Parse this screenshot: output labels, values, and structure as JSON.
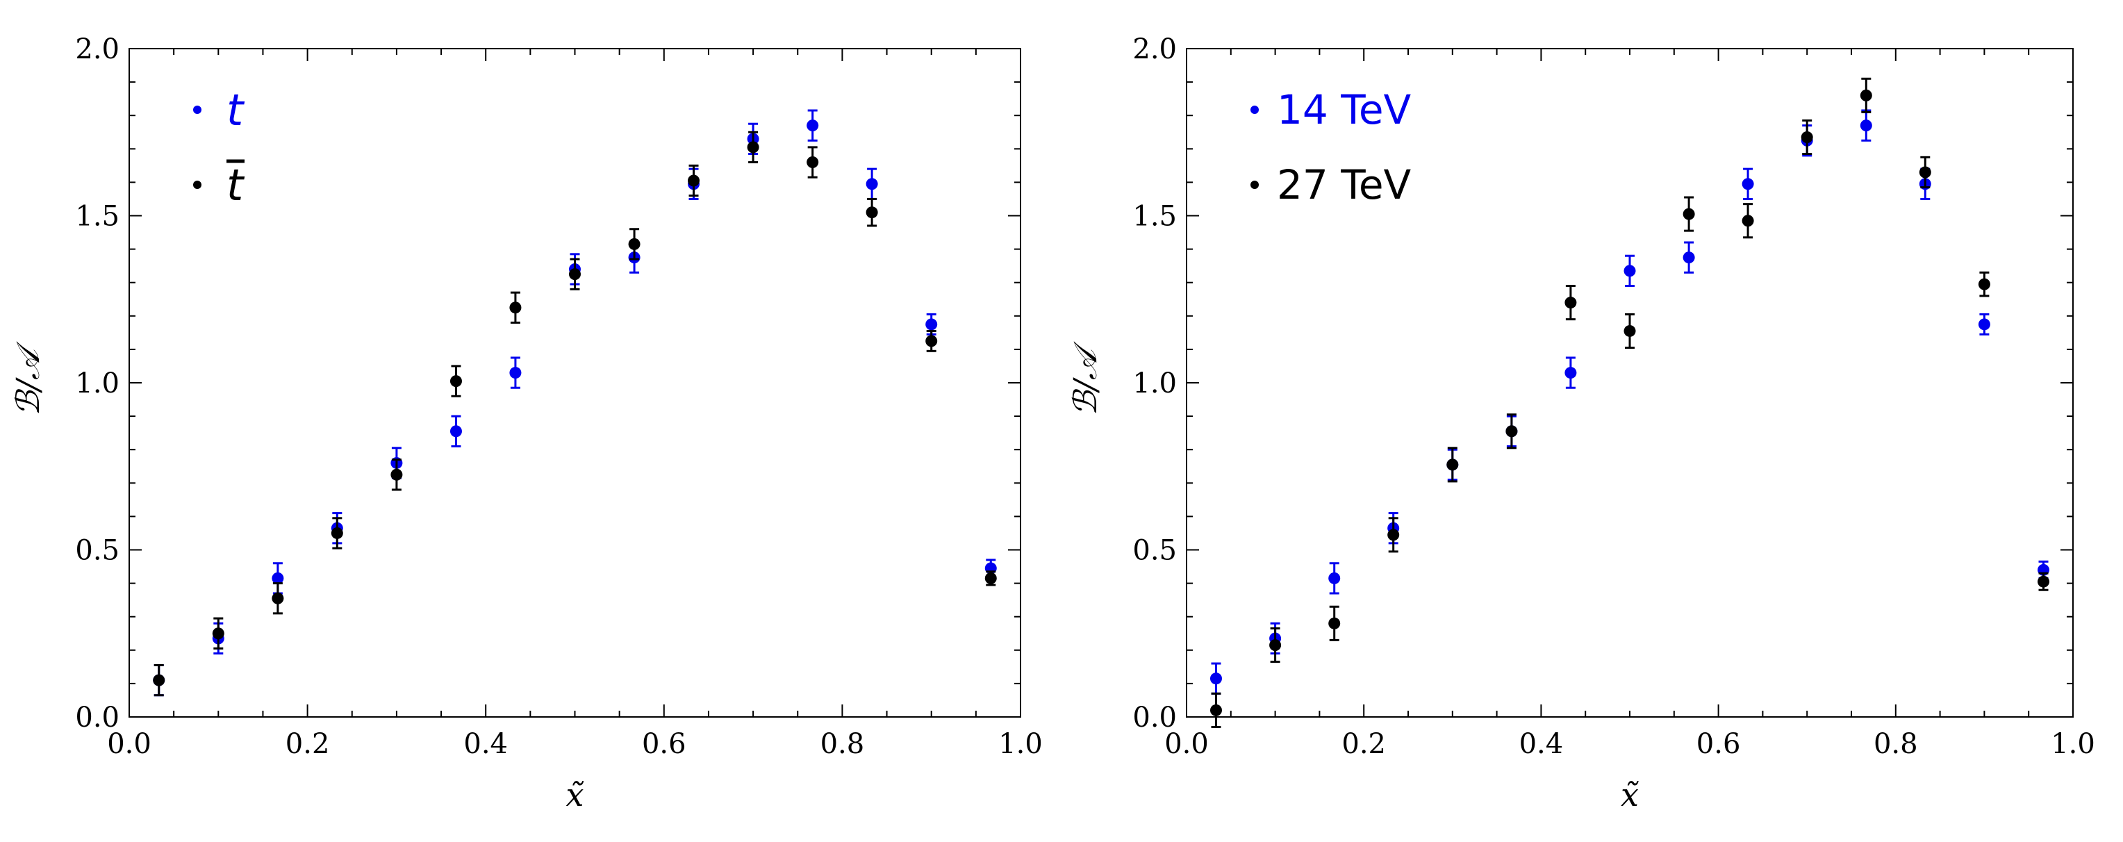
{
  "colors": {
    "blue": "#0000ee",
    "black": "#000000"
  },
  "chart_data": [
    {
      "type": "scatter",
      "title": "",
      "xlabel": "x̃",
      "ylabel": "ℬ/𝒜",
      "xlim": [
        0.0,
        1.0
      ],
      "ylim": [
        0.0,
        2.0
      ],
      "xticks": [
        "0.0",
        "0.2",
        "0.4",
        "0.6",
        "0.8",
        "1.0"
      ],
      "yticks": [
        "0.0",
        "0.5",
        "1.0",
        "1.5",
        "2.0"
      ],
      "legend_position": "top-left",
      "series": [
        {
          "name": "t",
          "color": "#0000ee",
          "x": [
            0.0333,
            0.1,
            0.1667,
            0.2333,
            0.3,
            0.3667,
            0.4333,
            0.5,
            0.5667,
            0.6333,
            0.7,
            0.7667,
            0.8333,
            0.9,
            0.9667
          ],
          "y": [
            0.11,
            0.235,
            0.415,
            0.565,
            0.76,
            0.855,
            1.03,
            1.34,
            1.375,
            1.595,
            1.73,
            1.77,
            1.595,
            1.175,
            0.445
          ],
          "err": [
            0.045,
            0.045,
            0.045,
            0.045,
            0.045,
            0.045,
            0.045,
            0.045,
            0.045,
            0.045,
            0.045,
            0.045,
            0.045,
            0.03,
            0.025
          ]
        },
        {
          "name": "t̄",
          "color": "#000000",
          "x": [
            0.0333,
            0.1,
            0.1667,
            0.2333,
            0.3,
            0.3667,
            0.4333,
            0.5,
            0.5667,
            0.6333,
            0.7,
            0.7667,
            0.8333,
            0.9,
            0.9667
          ],
          "y": [
            0.11,
            0.25,
            0.355,
            0.55,
            0.725,
            1.005,
            1.225,
            1.325,
            1.415,
            1.605,
            1.705,
            1.66,
            1.51,
            1.125,
            0.415
          ],
          "err": [
            0.045,
            0.045,
            0.045,
            0.045,
            0.045,
            0.045,
            0.045,
            0.045,
            0.045,
            0.045,
            0.045,
            0.045,
            0.04,
            0.03,
            0.02
          ]
        }
      ]
    },
    {
      "type": "scatter",
      "title": "",
      "xlabel": "x̃",
      "ylabel": "ℬ/𝒜",
      "xlim": [
        0.0,
        1.0
      ],
      "ylim": [
        0.0,
        2.0
      ],
      "xticks": [
        "0.0",
        "0.2",
        "0.4",
        "0.6",
        "0.8",
        "1.0"
      ],
      "yticks": [
        "0.0",
        "0.5",
        "1.0",
        "1.5",
        "2.0"
      ],
      "legend_position": "top-left",
      "series": [
        {
          "name": "14 TeV",
          "color": "#0000ee",
          "x": [
            0.0333,
            0.1,
            0.1667,
            0.2333,
            0.3,
            0.3667,
            0.4333,
            0.5,
            0.5667,
            0.6333,
            0.7,
            0.7667,
            0.8333,
            0.9,
            0.9667
          ],
          "y": [
            0.115,
            0.235,
            0.415,
            0.565,
            0.755,
            0.855,
            1.03,
            1.335,
            1.375,
            1.595,
            1.725,
            1.77,
            1.595,
            1.175,
            0.44
          ],
          "err": [
            0.045,
            0.045,
            0.045,
            0.045,
            0.045,
            0.045,
            0.045,
            0.045,
            0.045,
            0.045,
            0.045,
            0.045,
            0.045,
            0.03,
            0.025
          ]
        },
        {
          "name": "27 TeV",
          "color": "#000000",
          "x": [
            0.0333,
            0.1,
            0.1667,
            0.2333,
            0.3,
            0.3667,
            0.4333,
            0.5,
            0.5667,
            0.6333,
            0.7,
            0.7667,
            0.8333,
            0.9,
            0.9667
          ],
          "y": [
            0.02,
            0.215,
            0.28,
            0.545,
            0.755,
            0.855,
            1.24,
            1.155,
            1.505,
            1.485,
            1.735,
            1.86,
            1.63,
            1.295,
            0.405
          ],
          "err": [
            0.05,
            0.05,
            0.05,
            0.05,
            0.05,
            0.05,
            0.05,
            0.05,
            0.05,
            0.05,
            0.05,
            0.05,
            0.045,
            0.035,
            0.025
          ]
        }
      ]
    }
  ]
}
